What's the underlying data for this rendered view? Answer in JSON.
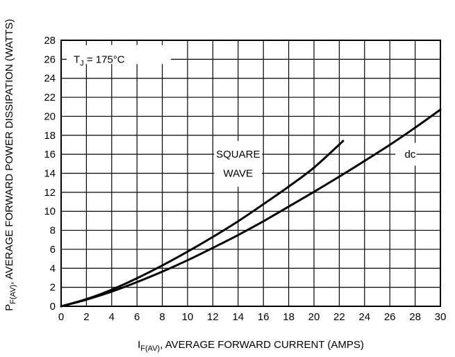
{
  "chart_data": {
    "type": "line",
    "xlabel": {
      "main": "I",
      "sub": "F(AV)",
      "rest": ", AVERAGE FORWARD CURRENT (AMPS)"
    },
    "ylabel": {
      "main": "P",
      "sub": "F(AV)",
      "rest": ", AVERAGE FORWARD POWER DISSIPATION (WATTS)"
    },
    "xlim": [
      0,
      30
    ],
    "ylim": [
      0,
      28
    ],
    "x_ticks": [
      0,
      2,
      4,
      6,
      8,
      10,
      12,
      14,
      16,
      18,
      20,
      22,
      24,
      26,
      28,
      30
    ],
    "y_ticks": [
      0,
      2,
      4,
      6,
      8,
      10,
      12,
      14,
      16,
      18,
      20,
      22,
      24,
      26,
      28
    ],
    "grid": true,
    "series": [
      {
        "name": "SQUARE WAVE",
        "x": [
          0,
          2,
          4,
          6,
          8,
          10,
          12,
          14,
          16,
          18,
          20,
          22.3
        ],
        "y": [
          0,
          0.75,
          1.75,
          2.95,
          4.3,
          5.75,
          7.3,
          8.95,
          10.75,
          12.6,
          14.6,
          17.4
        ]
      },
      {
        "name": "dc",
        "x": [
          0,
          2,
          4,
          6,
          8,
          10,
          12,
          14,
          16,
          18,
          20,
          22,
          24,
          26,
          28,
          30
        ],
        "y": [
          0,
          0.7,
          1.55,
          2.55,
          3.65,
          4.85,
          6.15,
          7.5,
          8.95,
          10.5,
          12.05,
          13.65,
          15.3,
          17.0,
          18.8,
          20.7
        ]
      }
    ],
    "annotations": {
      "tj": {
        "main": "T",
        "sub": "J",
        "rest": " = 175°C"
      },
      "square_line1": "SQUARE",
      "square_line2": "WAVE",
      "dc": "dc"
    }
  }
}
